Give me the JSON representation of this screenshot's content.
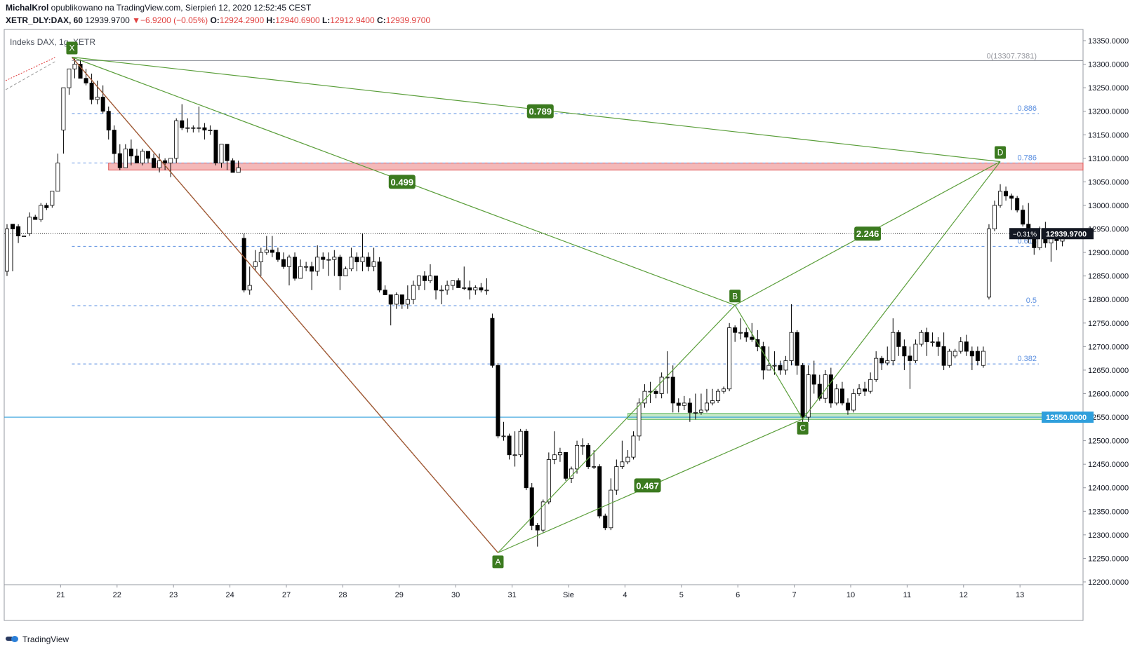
{
  "header": {
    "author": "MichalKrol",
    "published_text": " opublikowano na TradingView.com, Sierpień 12, 2020 12:52:45 CEST",
    "symbol": "XETR_DLY:DAX, 60",
    "last": "12939.9700",
    "change_arrow": "▼",
    "change": "−6.9200 (−0.05%)",
    "o_label": "O:",
    "o_value": "12924.2900",
    "h_label": "H:",
    "h_value": "12940.6900",
    "l_label": "L:",
    "l_value": "12912.9400",
    "c_label": "C:",
    "c_value": "12939.9700"
  },
  "footer": {
    "brand": "TradingView"
  },
  "colors": {
    "accent_green": "#3b7a1f",
    "pattern_line": "#5a9e3a",
    "fib_blue": "#5b8fe0",
    "support_line": "#2f9fdc",
    "resistance_zone": "#f4b8b8",
    "support_zone": "#c6e9c6"
  },
  "chart_data": {
    "type": "candlestick",
    "title": "Indeks DAX, 1g, XETR",
    "ylim": [
      12180,
      13390
    ],
    "y_ticks": [
      "13350.0000",
      "13300.0000",
      "13250.0000",
      "13200.0000",
      "13150.0000",
      "13100.0000",
      "13050.0000",
      "13000.0000",
      "12950.0000",
      "12900.0000",
      "12850.0000",
      "12800.0000",
      "12750.0000",
      "12700.0000",
      "12650.0000",
      "12600.0000",
      "12550.0000",
      "12500.0000",
      "12450.0000",
      "12400.0000",
      "12350.0000",
      "12300.0000",
      "12250.0000",
      "12200.0000"
    ],
    "x_ticks": [
      {
        "label": "21",
        "t": 9.5
      },
      {
        "label": "22",
        "t": 19.5
      },
      {
        "label": "23",
        "t": 29.5
      },
      {
        "label": "24",
        "t": 39.5
      },
      {
        "label": "27",
        "t": 49.5
      },
      {
        "label": "28",
        "t": 59.5
      },
      {
        "label": "29",
        "t": 69.5
      },
      {
        "label": "30",
        "t": 79.5
      },
      {
        "label": "31",
        "t": 89.5
      },
      {
        "label": "Sie",
        "t": 99.5
      },
      {
        "label": "4",
        "t": 109.5
      },
      {
        "label": "5",
        "t": 119.5
      },
      {
        "label": "6",
        "t": 129.5
      },
      {
        "label": "7",
        "t": 139.5
      },
      {
        "label": "10",
        "t": 149.5
      },
      {
        "label": "11",
        "t": 159.5
      },
      {
        "label": "12",
        "t": 169.5
      },
      {
        "label": "13",
        "t": 179.5
      }
    ],
    "price_tags": [
      {
        "label": "12939.9700",
        "value": 12939.97,
        "style": "dark"
      },
      {
        "label": "12550.0000",
        "value": 12550,
        "style": "blue"
      }
    ],
    "current_change_label": "−0.31%",
    "last_price": 12939.97,
    "support_level": 12550,
    "resistance_zone": {
      "from": 13075,
      "to": 13090,
      "t_start": 18
    },
    "support_zone": {
      "from": 12545,
      "to": 12558,
      "t_start": 110
    },
    "top_line": {
      "value": 13307.7381,
      "label": "0(13307.7381)"
    },
    "fib_levels": [
      {
        "label": "0.886",
        "value": 13195
      },
      {
        "label": "0.786",
        "value": 13090
      },
      {
        "label": "0.618",
        "value": 12913
      },
      {
        "label": "0.5",
        "value": 12787
      },
      {
        "label": "0.382",
        "value": 12663
      }
    ],
    "pattern_points": [
      {
        "label": "X",
        "t": 11.5,
        "value": 13315
      },
      {
        "label": "A",
        "t": 87.0,
        "value": 12262
      },
      {
        "label": "B",
        "t": 129.0,
        "value": 12788
      },
      {
        "label": "C",
        "t": 141.0,
        "value": 12546
      },
      {
        "label": "D",
        "t": 176.0,
        "value": 13093
      }
    ],
    "ratios": [
      {
        "label": "0.789",
        "t": 94.5,
        "value": 13200
      },
      {
        "label": "0.499",
        "t": 70.0,
        "value": 13050
      },
      {
        "label": "2.246",
        "t": 152.5,
        "value": 12940
      },
      {
        "label": "0.467",
        "t": 113.5,
        "value": 12405
      }
    ],
    "candles": [
      [
        12860,
        12950,
        12850,
        12960
      ],
      [
        12960,
        12950,
        12860,
        12960
      ],
      [
        12955,
        12935,
        12920,
        12960
      ],
      [
        12935,
        12935,
        12935,
        12935
      ],
      [
        12940,
        12975,
        12935,
        12985
      ],
      [
        12975,
        12970,
        12970,
        12980
      ],
      [
        12970,
        13000,
        12965,
        13005
      ],
      [
        13000,
        12995,
        12990,
        13005
      ],
      [
        13000,
        13030,
        12995,
        13030
      ],
      [
        13030,
        13090,
        13030,
        13110
      ],
      [
        13160,
        13250,
        13110,
        13250
      ],
      [
        13250,
        13290,
        13235,
        13290
      ],
      [
        13290,
        13300,
        13270,
        13315
      ],
      [
        13300,
        13270,
        13275,
        13310
      ],
      [
        13270,
        13260,
        13255,
        13290
      ],
      [
        13260,
        13225,
        13215,
        13280
      ],
      [
        13225,
        13230,
        13215,
        13265
      ],
      [
        13230,
        13200,
        13195,
        13255
      ],
      [
        13200,
        13160,
        13140,
        13210
      ],
      [
        13160,
        13110,
        13090,
        13170
      ],
      [
        13110,
        13080,
        13075,
        13130
      ],
      [
        13080,
        13120,
        13080,
        13130
      ],
      [
        13120,
        13105,
        13085,
        13140
      ],
      [
        13105,
        13090,
        13095,
        13120
      ],
      [
        13090,
        13115,
        13085,
        13120
      ],
      [
        13115,
        13100,
        13090,
        13115
      ],
      [
        13100,
        13080,
        13080,
        13110
      ],
      [
        13080,
        13095,
        13070,
        13110
      ],
      [
        13095,
        13090,
        13075,
        13100
      ],
      [
        13090,
        13100,
        13060,
        13100
      ],
      [
        13100,
        13180,
        13090,
        13185
      ],
      [
        13180,
        13165,
        13160,
        13215
      ],
      [
        13165,
        13165,
        13155,
        13185
      ],
      [
        13165,
        13165,
        13155,
        13170
      ],
      [
        13165,
        13165,
        13155,
        13210
      ],
      [
        13165,
        13160,
        13140,
        13175
      ],
      [
        13160,
        13160,
        13150,
        13170
      ],
      [
        13160,
        13090,
        13085,
        13160
      ],
      [
        13090,
        13130,
        13080,
        13130
      ],
      [
        13130,
        13095,
        13075,
        13130
      ],
      [
        13095,
        13070,
        13070,
        13100
      ],
      [
        13070,
        13080,
        13070,
        13095
      ],
      [
        12930,
        12820,
        12815,
        12940
      ],
      [
        12820,
        12830,
        12810,
        12870
      ],
      [
        12870,
        12880,
        12860,
        12905
      ],
      [
        12880,
        12900,
        12850,
        12910
      ],
      [
        12900,
        12905,
        12895,
        12935
      ],
      [
        12905,
        12900,
        12890,
        12935
      ],
      [
        12900,
        12885,
        12880,
        12910
      ],
      [
        12885,
        12870,
        12865,
        12900
      ],
      [
        12870,
        12890,
        12830,
        12895
      ],
      [
        12890,
        12845,
        12840,
        12900
      ],
      [
        12845,
        12870,
        12850,
        12885
      ],
      [
        12870,
        12870,
        12860,
        12880
      ],
      [
        12870,
        12860,
        12820,
        12880
      ],
      [
        12860,
        12890,
        12850,
        12915
      ],
      [
        12890,
        12885,
        12865,
        12900
      ],
      [
        12885,
        12885,
        12850,
        12900
      ],
      [
        12885,
        12890,
        12850,
        12905
      ],
      [
        12890,
        12850,
        12820,
        12895
      ],
      [
        12850,
        12865,
        12850,
        12870
      ],
      [
        12865,
        12890,
        12860,
        12910
      ],
      [
        12890,
        12880,
        12860,
        12900
      ],
      [
        12880,
        12890,
        12860,
        12940
      ],
      [
        12890,
        12870,
        12860,
        12900
      ],
      [
        12870,
        12880,
        12860,
        12910
      ],
      [
        12880,
        12820,
        12815,
        12890
      ],
      [
        12820,
        12810,
        12810,
        12830
      ],
      [
        12810,
        12790,
        12745,
        12810
      ],
      [
        12790,
        12810,
        12780,
        12815
      ],
      [
        12810,
        12790,
        12780,
        12810
      ],
      [
        12790,
        12800,
        12780,
        12830
      ],
      [
        12800,
        12830,
        12790,
        12840
      ],
      [
        12830,
        12850,
        12820,
        12850
      ],
      [
        12850,
        12840,
        12820,
        12860
      ],
      [
        12840,
        12850,
        12835,
        12875
      ],
      [
        12850,
        12820,
        12800,
        12850
      ],
      [
        12820,
        12820,
        12790,
        12830
      ],
      [
        12820,
        12830,
        12810,
        12840
      ],
      [
        12830,
        12840,
        12820,
        12840
      ],
      [
        12840,
        12825,
        12825,
        12845
      ],
      [
        12825,
        12825,
        12820,
        12870
      ],
      [
        12825,
        12820,
        12800,
        12840
      ],
      [
        12820,
        12825,
        12810,
        12830
      ],
      [
        12825,
        12820,
        12815,
        12835
      ],
      [
        12820,
        12820,
        12810,
        12845
      ],
      [
        12760,
        12660,
        12655,
        12770
      ],
      [
        12660,
        12510,
        12505,
        12665
      ],
      [
        12510,
        12510,
        12500,
        12540
      ],
      [
        12510,
        12470,
        12460,
        12515
      ],
      [
        12470,
        12470,
        12445,
        12520
      ],
      [
        12470,
        12520,
        12465,
        12525
      ],
      [
        12520,
        12400,
        12395,
        12525
      ],
      [
        12400,
        12320,
        12310,
        12410
      ],
      [
        12320,
        12310,
        12275,
        12325
      ],
      [
        12310,
        12370,
        12305,
        12375
      ],
      [
        12370,
        12460,
        12365,
        12475
      ],
      [
        12460,
        12470,
        12450,
        12520
      ],
      [
        12470,
        12475,
        12455,
        12485
      ],
      [
        12475,
        12420,
        12415,
        12475
      ],
      [
        12420,
        12440,
        12410,
        12445
      ],
      [
        12440,
        12490,
        12430,
        12500
      ],
      [
        12490,
        12490,
        12470,
        12505
      ],
      [
        12490,
        12445,
        12440,
        12495
      ],
      [
        12445,
        12445,
        12440,
        12480
      ],
      [
        12445,
        12340,
        12335,
        12450
      ],
      [
        12340,
        12315,
        12310,
        12345
      ],
      [
        12315,
        12395,
        12310,
        12420
      ],
      [
        12395,
        12445,
        12385,
        12460
      ],
      [
        12445,
        12455,
        12440,
        12500
      ],
      [
        12455,
        12465,
        12450,
        12480
      ],
      [
        12465,
        12510,
        12460,
        12520
      ],
      [
        12510,
        12580,
        12500,
        12590
      ],
      [
        12580,
        12605,
        12570,
        12620
      ],
      [
        12605,
        12605,
        12580,
        12625
      ],
      [
        12605,
        12600,
        12590,
        12610
      ],
      [
        12600,
        12635,
        12590,
        12645
      ],
      [
        12635,
        12635,
        12600,
        12690
      ],
      [
        12635,
        12580,
        12560,
        12660
      ],
      [
        12580,
        12575,
        12560,
        12590
      ],
      [
        12575,
        12580,
        12565,
        12595
      ],
      [
        12580,
        12560,
        12540,
        12590
      ],
      [
        12560,
        12560,
        12545,
        12600
      ],
      [
        12560,
        12565,
        12555,
        12600
      ],
      [
        12565,
        12580,
        12560,
        12610
      ],
      [
        12580,
        12585,
        12575,
        12610
      ],
      [
        12585,
        12605,
        12580,
        12610
      ],
      [
        12605,
        12610,
        12600,
        12615
      ],
      [
        12610,
        12740,
        12605,
        12750
      ],
      [
        12740,
        12730,
        12710,
        12745
      ],
      [
        12730,
        12730,
        12715,
        12760
      ],
      [
        12730,
        12720,
        12710,
        12740
      ],
      [
        12720,
        12715,
        12710,
        12750
      ],
      [
        12715,
        12700,
        12690,
        12735
      ],
      [
        12700,
        12650,
        12630,
        12710
      ],
      [
        12650,
        12660,
        12650,
        12700
      ],
      [
        12660,
        12660,
        12640,
        12690
      ],
      [
        12660,
        12650,
        12640,
        12670
      ],
      [
        12650,
        12670,
        12640,
        12680
      ],
      [
        12670,
        12730,
        12660,
        12790
      ],
      [
        12730,
        12660,
        12640,
        12735
      ],
      [
        12660,
        12550,
        12540,
        12665
      ],
      [
        12550,
        12640,
        12540,
        12660
      ],
      [
        12640,
        12620,
        12600,
        12670
      ],
      [
        12620,
        12590,
        12585,
        12640
      ],
      [
        12590,
        12640,
        12580,
        12650
      ],
      [
        12640,
        12580,
        12570,
        12655
      ],
      [
        12580,
        12610,
        12575,
        12620
      ],
      [
        12610,
        12580,
        12575,
        12625
      ],
      [
        12580,
        12565,
        12555,
        12590
      ],
      [
        12565,
        12600,
        12560,
        12610
      ],
      [
        12600,
        12610,
        12595,
        12620
      ],
      [
        12610,
        12605,
        12595,
        12625
      ],
      [
        12605,
        12630,
        12600,
        12645
      ],
      [
        12630,
        12675,
        12625,
        12690
      ],
      [
        12675,
        12665,
        12650,
        12680
      ],
      [
        12665,
        12670,
        12660,
        12700
      ],
      [
        12670,
        12730,
        12660,
        12760
      ],
      [
        12730,
        12700,
        12680,
        12735
      ],
      [
        12700,
        12680,
        12650,
        12715
      ],
      [
        12680,
        12670,
        12610,
        12700
      ],
      [
        12670,
        12705,
        12665,
        12715
      ],
      [
        12705,
        12730,
        12700,
        12735
      ],
      [
        12730,
        12710,
        12680,
        12740
      ],
      [
        12710,
        12710,
        12700,
        12730
      ],
      [
        12710,
        12700,
        12680,
        12720
      ],
      [
        12700,
        12660,
        12650,
        12730
      ],
      [
        12660,
        12690,
        12655,
        12695
      ],
      [
        12680,
        12690,
        12675,
        12695
      ],
      [
        12690,
        12710,
        12685,
        12720
      ],
      [
        12710,
        12690,
        12680,
        12725
      ],
      [
        12690,
        12680,
        12650,
        12700
      ],
      [
        12690,
        12670,
        12660,
        12700
      ],
      [
        12660,
        12690,
        12655,
        12700
      ],
      [
        12805,
        12950,
        12800,
        12960
      ],
      [
        12950,
        13000,
        12945,
        13010
      ],
      [
        13000,
        13030,
        12995,
        13045
      ],
      [
        13030,
        13020,
        13010,
        13040
      ],
      [
        13020,
        13015,
        12990,
        13025
      ],
      [
        13015,
        12990,
        12985,
        13020
      ],
      [
        12990,
        12960,
        12955,
        13000
      ],
      [
        12960,
        12930,
        12920,
        13005
      ],
      [
        12930,
        12910,
        12895,
        12935
      ],
      [
        12910,
        12950,
        12905,
        12955
      ],
      [
        12950,
        12920,
        12910,
        12965
      ],
      [
        12920,
        12930,
        12880,
        12935
      ],
      [
        12930,
        12925,
        12905,
        12940
      ],
      [
        12924,
        12940,
        12913,
        12941
      ]
    ]
  }
}
